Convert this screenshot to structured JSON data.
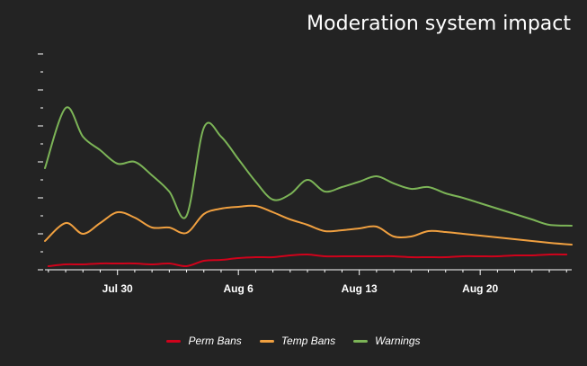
{
  "chart_data": {
    "type": "line",
    "title": "Moderation system impact",
    "xlabel": "",
    "ylabel": "",
    "x_ticks": [
      "Jul 30",
      "Aug 6",
      "Aug 13",
      "Aug 20"
    ],
    "x_tick_days": [
      4,
      11,
      18,
      25
    ],
    "x_range_days": [
      -0.2,
      30.3
    ],
    "ylim": [
      0,
      24
    ],
    "y_tick_count": 13,
    "grid": false,
    "legend_position": "bottom-center",
    "series": [
      {
        "name": "Perm Bans",
        "color": "#d0021b",
        "points": [
          [
            0,
            0.4
          ],
          [
            1,
            0.6
          ],
          [
            2,
            0.6
          ],
          [
            3,
            0.7
          ],
          [
            4,
            0.7
          ],
          [
            5,
            0.7
          ],
          [
            6,
            0.6
          ],
          [
            7,
            0.7
          ],
          [
            8,
            0.4
          ],
          [
            9,
            1.0
          ],
          [
            10,
            1.1
          ],
          [
            11,
            1.3
          ],
          [
            12,
            1.4
          ],
          [
            13,
            1.4
          ],
          [
            14,
            1.6
          ],
          [
            15,
            1.7
          ],
          [
            16,
            1.5
          ],
          [
            17,
            1.5
          ],
          [
            18,
            1.5
          ],
          [
            19,
            1.5
          ],
          [
            20,
            1.5
          ],
          [
            21,
            1.4
          ],
          [
            22,
            1.4
          ],
          [
            23,
            1.4
          ],
          [
            24,
            1.5
          ],
          [
            25,
            1.5
          ],
          [
            26,
            1.5
          ],
          [
            27,
            1.6
          ],
          [
            28,
            1.6
          ],
          [
            29,
            1.7
          ],
          [
            30,
            1.7
          ]
        ]
      },
      {
        "name": "Temp Bans",
        "color": "#f0a040",
        "points": [
          [
            -0.2,
            3.2
          ],
          [
            1,
            5.2
          ],
          [
            2,
            4.0
          ],
          [
            3,
            5.2
          ],
          [
            4,
            6.4
          ],
          [
            5,
            5.8
          ],
          [
            6,
            4.7
          ],
          [
            7,
            4.7
          ],
          [
            8,
            4.1
          ],
          [
            9,
            6.2
          ],
          [
            10,
            6.8
          ],
          [
            11,
            7.0
          ],
          [
            12,
            7.1
          ],
          [
            13,
            6.4
          ],
          [
            14,
            5.6
          ],
          [
            15,
            5.0
          ],
          [
            16,
            4.3
          ],
          [
            17,
            4.4
          ],
          [
            18,
            4.6
          ],
          [
            19,
            4.8
          ],
          [
            20,
            3.7
          ],
          [
            21,
            3.7
          ],
          [
            22,
            4.3
          ],
          [
            23,
            4.2
          ],
          [
            24,
            4.0
          ],
          [
            25,
            3.8
          ],
          [
            26,
            3.6
          ],
          [
            27,
            3.4
          ],
          [
            28,
            3.2
          ],
          [
            29,
            3.0
          ],
          [
            30.3,
            2.8
          ]
        ]
      },
      {
        "name": "Warnings",
        "color": "#7cb457",
        "points": [
          [
            -0.2,
            11.3
          ],
          [
            1,
            18.0
          ],
          [
            2,
            14.8
          ],
          [
            3,
            13.3
          ],
          [
            4,
            11.8
          ],
          [
            5,
            12.0
          ],
          [
            6,
            10.5
          ],
          [
            7,
            8.7
          ],
          [
            8,
            6.0
          ],
          [
            9,
            15.8
          ],
          [
            10,
            14.8
          ],
          [
            11,
            12.3
          ],
          [
            12,
            9.8
          ],
          [
            13,
            7.8
          ],
          [
            14,
            8.4
          ],
          [
            15,
            10.0
          ],
          [
            16,
            8.7
          ],
          [
            17,
            9.2
          ],
          [
            18,
            9.8
          ],
          [
            19,
            10.4
          ],
          [
            20,
            9.6
          ],
          [
            21,
            9.0
          ],
          [
            22,
            9.2
          ],
          [
            23,
            8.5
          ],
          [
            24,
            8.0
          ],
          [
            25,
            7.4
          ],
          [
            26,
            6.8
          ],
          [
            27,
            6.2
          ],
          [
            28,
            5.6
          ],
          [
            29,
            5.0
          ],
          [
            30.3,
            4.9
          ]
        ]
      }
    ]
  }
}
